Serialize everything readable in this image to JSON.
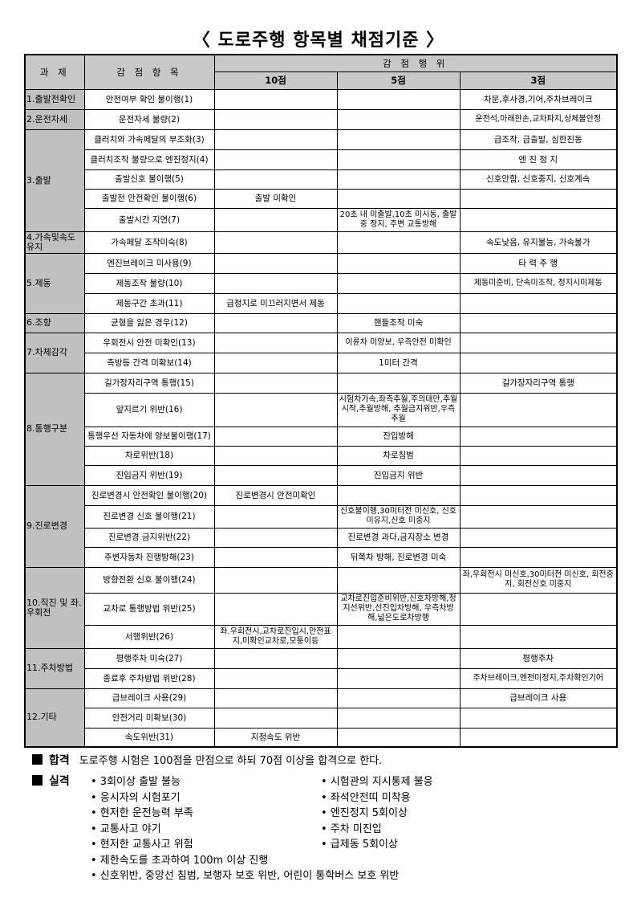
{
  "title": "〈 도로주행 항목별 채점기준 〉",
  "header": {
    "task": "과 제",
    "item": "감 점 항 목",
    "action": "감 점 행 위",
    "p10": "10점",
    "p5": "5점",
    "p3": "3점"
  },
  "groups": [
    {
      "name": "1.출발전확인",
      "items": [
        {
          "item": "안전여부 확인 불이행(1)",
          "p10": "",
          "p5": "",
          "p3": "차문,후사경,기어,주차브레이크"
        }
      ]
    },
    {
      "name": "2.운전자세",
      "items": [
        {
          "item": "운전자세 불량(2)",
          "p10": "",
          "p5": "",
          "p3": "운전석,아래한손,교차파지,상체불안정"
        }
      ]
    },
    {
      "name": "3.출발",
      "items": [
        {
          "item": "클러치와 가속페달의 부조화(3)",
          "p10": "",
          "p5": "",
          "p3": "급조작, 급출발, 심한진동"
        },
        {
          "item": "클러치조작 불량으로 엔진정지(4)",
          "p10": "",
          "p5": "",
          "p3": "엔 진 정 지"
        },
        {
          "item": "출발신호 불이행(5)",
          "p10": "",
          "p5": "",
          "p3": "신호안함, 신호중지, 신호계속"
        },
        {
          "item": "출발전 안전확인 불이행(6)",
          "p10": "출발 미확인",
          "p5": "",
          "p3": ""
        },
        {
          "item": "출발시간 지연(7)",
          "p10": "",
          "p5": "20초 내 미출발,10초 미시동, 출발중 정지, 주변 교통방해",
          "p3": ""
        }
      ]
    },
    {
      "name": "4.가속및속도유지",
      "items": [
        {
          "item": "가속페달 조작미숙(8)",
          "p10": "",
          "p5": "",
          "p3": "속도낮음, 유지불능, 가속불가"
        }
      ]
    },
    {
      "name": "5.제동",
      "items": [
        {
          "item": "엔진브레이크 미사용(9)",
          "p10": "",
          "p5": "",
          "p3": "타 력 주 행"
        },
        {
          "item": "제동조작 불량(10)",
          "p10": "",
          "p5": "",
          "p3": "제동미준비, 단속미조작, 정지시미제동"
        },
        {
          "item": "제동구간 초과(11)",
          "p10": "급정지로 미끄러지면서 제동",
          "p5": "",
          "p3": ""
        }
      ]
    },
    {
      "name": "6.조향",
      "items": [
        {
          "item": "균형을 잃은 경우(12)",
          "p10": "",
          "p5": "핸들조작 미숙",
          "p3": ""
        }
      ]
    },
    {
      "name": "7.차체감각",
      "items": [
        {
          "item": "우회전시 안전 미확인(13)",
          "p10": "",
          "p5": "이륜차 미양보, 우측안전 미확인",
          "p3": ""
        },
        {
          "item": "측방등 간격 미확보(14)",
          "p10": "",
          "p5": "1미터 간격",
          "p3": ""
        }
      ]
    },
    {
      "name": "8.통행구분",
      "items": [
        {
          "item": "길가장자리구역 통행(15)",
          "p10": "",
          "p5": "",
          "p3": "길가장자리구역 통행"
        },
        {
          "item": "앞지르기 위반(16)",
          "p10": "",
          "p5": "시험차가속,좌측추월,주의태만,추월시작,추월방해, 추월금지위반,우측추월",
          "p3": ""
        },
        {
          "item": "통행우선 자동차에 양보불이행(17)",
          "p10": "",
          "p5": "진입방해",
          "p3": ""
        },
        {
          "item": "차로위반(18)",
          "p10": "",
          "p5": "차로침범",
          "p3": ""
        },
        {
          "item": "진입금지 위반(19)",
          "p10": "",
          "p5": "진입금지 위반",
          "p3": ""
        }
      ]
    },
    {
      "name": "9.진로변경",
      "items": [
        {
          "item": "진로변경시 안전확인 불이행(20)",
          "p10": "진로변경시 안전미확인",
          "p5": "",
          "p3": ""
        },
        {
          "item": "진로변경 신호 불이행(21)",
          "p10": "",
          "p5": "신호불이행,30미터전 미신호, 신호 미유지,신호 미중지",
          "p3": ""
        },
        {
          "item": "진로변경 금지위반(22)",
          "p10": "",
          "p5": "진로변경 과다,금지장소 변경",
          "p3": ""
        },
        {
          "item": "주변자동차 진행방해(23)",
          "p10": "",
          "p5": "뒤쪽차 방해, 진로변경 미숙",
          "p3": ""
        }
      ]
    },
    {
      "name": "10.직진 및 좌.우회전",
      "items": [
        {
          "item": "방향전환 신호 불이행(24)",
          "p10": "",
          "p5": "",
          "p3": "좌,우회전시 미신호,30미터전 미신호, 회전중지, 회전신호 미중지"
        },
        {
          "item": "교차로 통행방법 위반(25)",
          "p10": "",
          "p5": "교차로진입준비위반,신호차방해,정지선위반,선진입차방해, 우측차방해,넓은도로차방행",
          "p3": ""
        },
        {
          "item": "서행위반(26)",
          "p10": "좌.우회전시,교차로진입시,안전표지,미확인교차로,모퉁이등",
          "p5": "",
          "p3": ""
        }
      ]
    },
    {
      "name": "11.주차방법",
      "items": [
        {
          "item": "평행주차 미숙(27)",
          "p10": "",
          "p5": "",
          "p3": "평행주차"
        },
        {
          "item": "종료후 주차방법 위반(28)",
          "p10": "",
          "p5": "",
          "p3": "주차브레이크,엔전미정지,주차확인기어"
        }
      ]
    },
    {
      "name": "12.기타",
      "items": [
        {
          "item": "급브레이크 사용(29)",
          "p10": "",
          "p5": "",
          "p3": "급브레이크 사용"
        },
        {
          "item": "안전거리 미확보(30)",
          "p10": "",
          "p5": "",
          "p3": ""
        },
        {
          "item": "속도위반(31)",
          "p10": "지정속도 위반",
          "p5": "",
          "p3": ""
        }
      ]
    }
  ],
  "pass": {
    "label": "합격",
    "text": "도로주행 시험은 100점을 만점으로 하되 70점 이상을 합격으로 한다."
  },
  "fail": {
    "label": "실격",
    "left": [
      "• 3회이상 출발 불능",
      "• 응시자의 시험포기",
      "• 현저한 운전능력 부족",
      "• 교통사고 야기",
      "• 현저한 교통사고 위험",
      "• 제한속도를 초과하여 100m 이상 진행",
      "• 신호위반, 중앙선 침범, 보행자 보호 위반, 어린이 통학버스 보호 위반"
    ],
    "right": [
      "• 시험관의 지시통제 불응",
      "• 좌석안전띠 미착용",
      "• 엔진정지 5회이상",
      "• 주차 미진입",
      "• 급제동 5회이상"
    ]
  }
}
